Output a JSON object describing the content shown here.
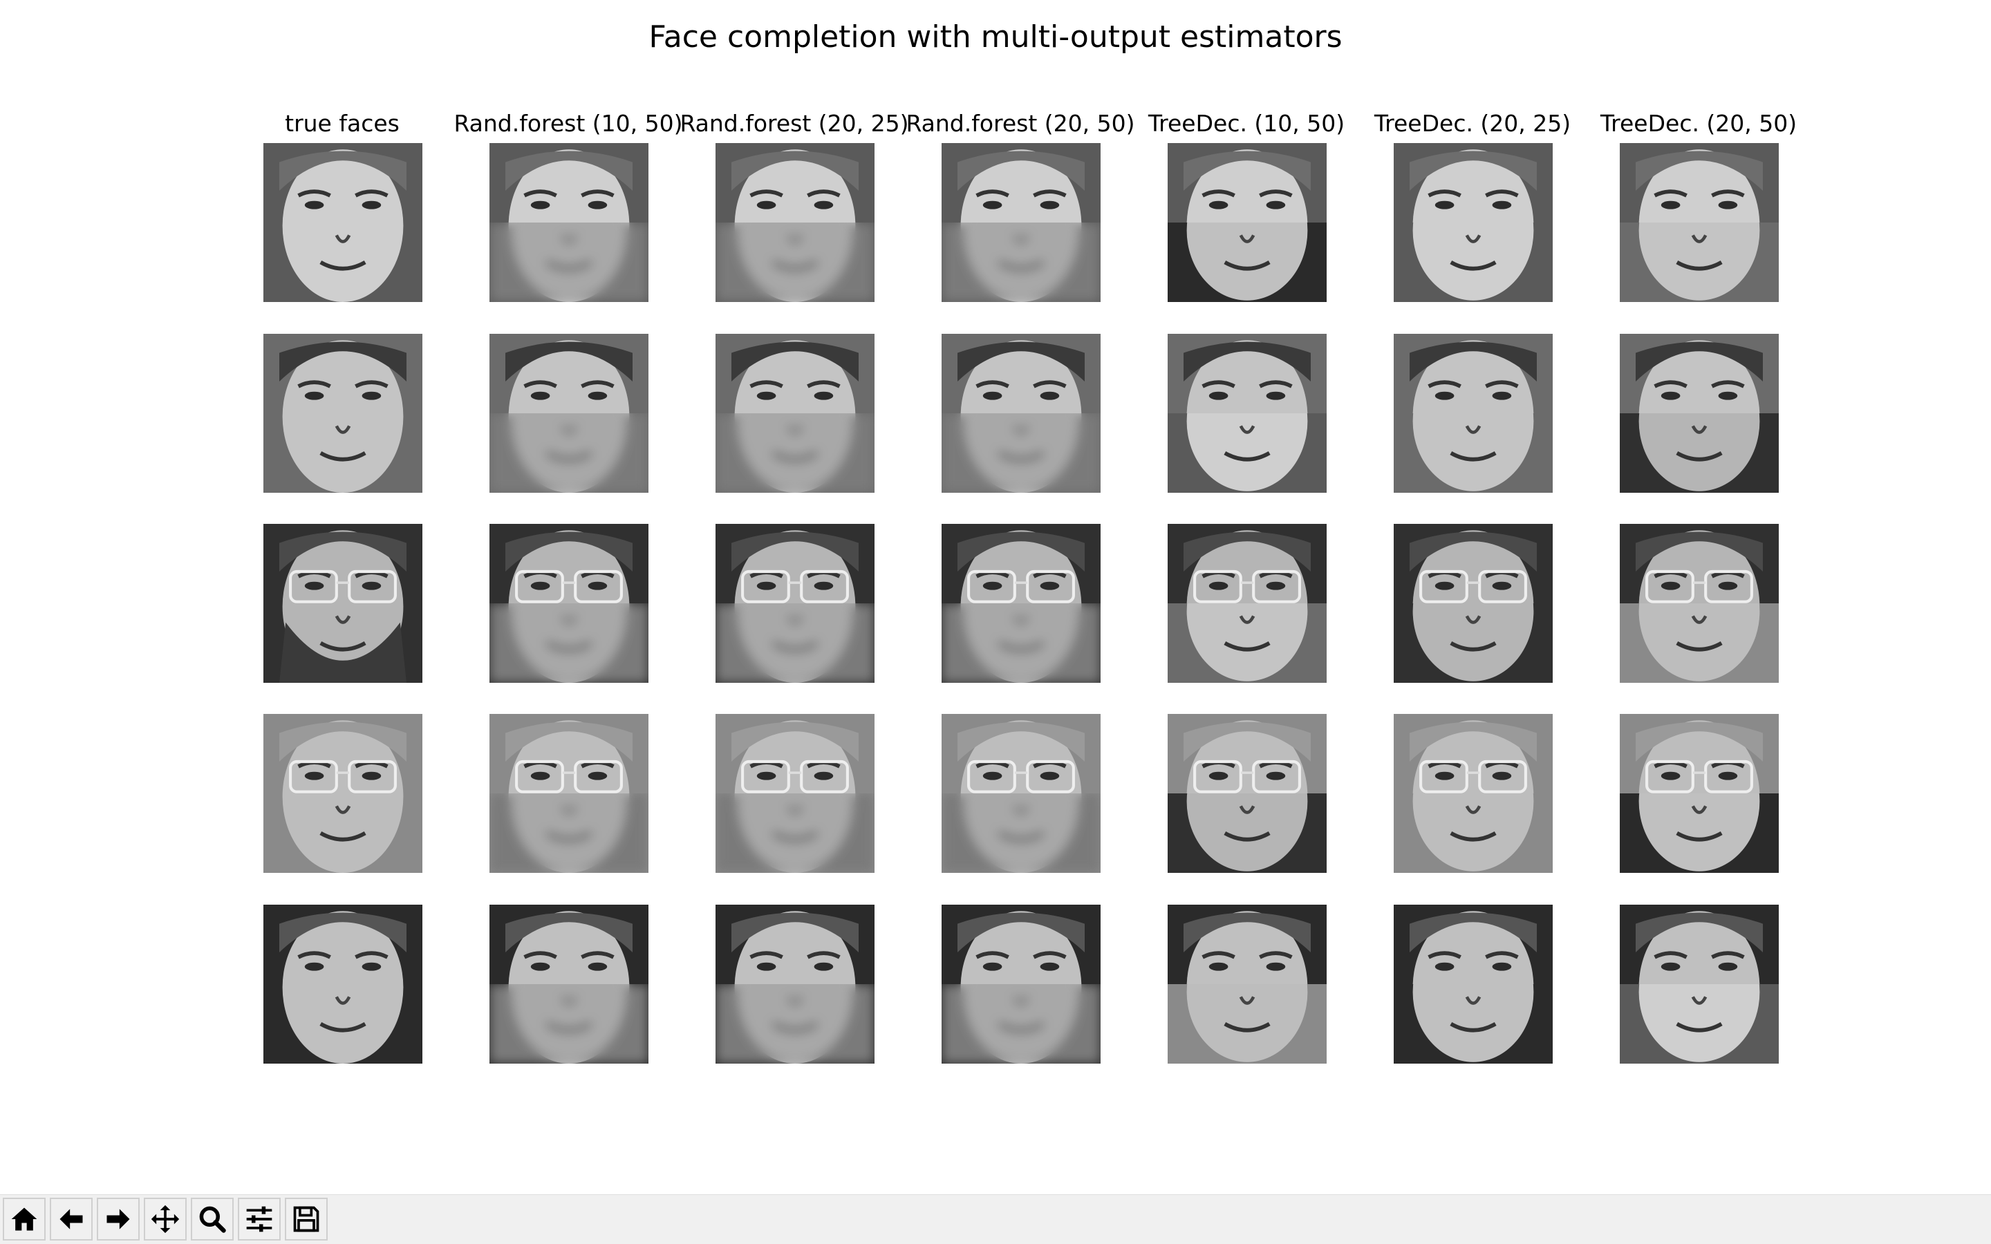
{
  "figure": {
    "title": "Face completion with multi-output estimators",
    "columns": [
      {
        "title": "true faces"
      },
      {
        "title": "Rand.forest (10, 50)"
      },
      {
        "title": "Rand.forest (20, 25)"
      },
      {
        "title": "Rand.forest (20, 50)"
      },
      {
        "title": "TreeDec. (10, 50)"
      },
      {
        "title": "TreeDec. (20, 25)"
      },
      {
        "title": "TreeDec. (20, 50)"
      }
    ],
    "rows": 5
  },
  "toolbar": {
    "buttons": [
      {
        "name": "home-button",
        "icon": "home-icon"
      },
      {
        "name": "back-button",
        "icon": "arrow-left-icon"
      },
      {
        "name": "forward-button",
        "icon": "arrow-right-icon"
      },
      {
        "name": "pan-button",
        "icon": "move-icon"
      },
      {
        "name": "zoom-button",
        "icon": "magnifier-icon"
      },
      {
        "name": "configure-subplots-button",
        "icon": "sliders-icon"
      },
      {
        "name": "save-button",
        "icon": "floppy-disk-icon"
      }
    ]
  }
}
